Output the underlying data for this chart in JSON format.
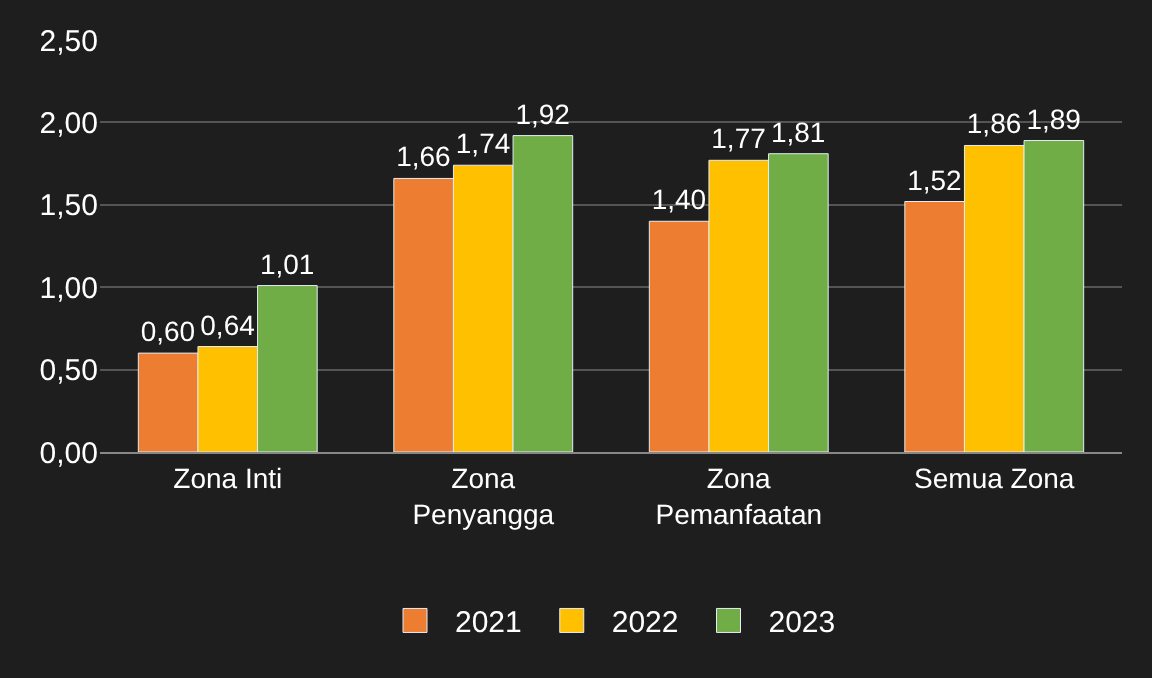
{
  "chart_data": {
    "type": "bar",
    "categories": [
      "Zona Inti",
      "Zona Penyangga",
      "Zona Pemanfaatan",
      "Semua Zona"
    ],
    "series": [
      {
        "name": "2021",
        "color": "#ed7d31",
        "values": [
          0.6,
          1.66,
          1.4,
          1.52
        ],
        "value_labels": [
          "0,60",
          "1,66",
          "1,40",
          "1,52"
        ]
      },
      {
        "name": "2022",
        "color": "#ffc000",
        "values": [
          0.64,
          1.74,
          1.77,
          1.86
        ],
        "value_labels": [
          "0,64",
          "1,74",
          "1,77",
          "1,86"
        ]
      },
      {
        "name": "2023",
        "color": "#70ad47",
        "values": [
          1.01,
          1.92,
          1.81,
          1.89
        ],
        "value_labels": [
          "1,01",
          "1,92",
          "1,81",
          "1,89"
        ]
      }
    ],
    "ylim": [
      0,
      2.5
    ],
    "yticks": [
      {
        "value": 0,
        "label": "0,00"
      },
      {
        "value": 0.5,
        "label": "0,50"
      },
      {
        "value": 1,
        "label": "1,00"
      },
      {
        "value": 1.5,
        "label": "1,50"
      },
      {
        "value": 2,
        "label": "2,00"
      },
      {
        "value": 2.5,
        "label": "2,50"
      }
    ],
    "grid": "y",
    "legend": "bottom"
  }
}
